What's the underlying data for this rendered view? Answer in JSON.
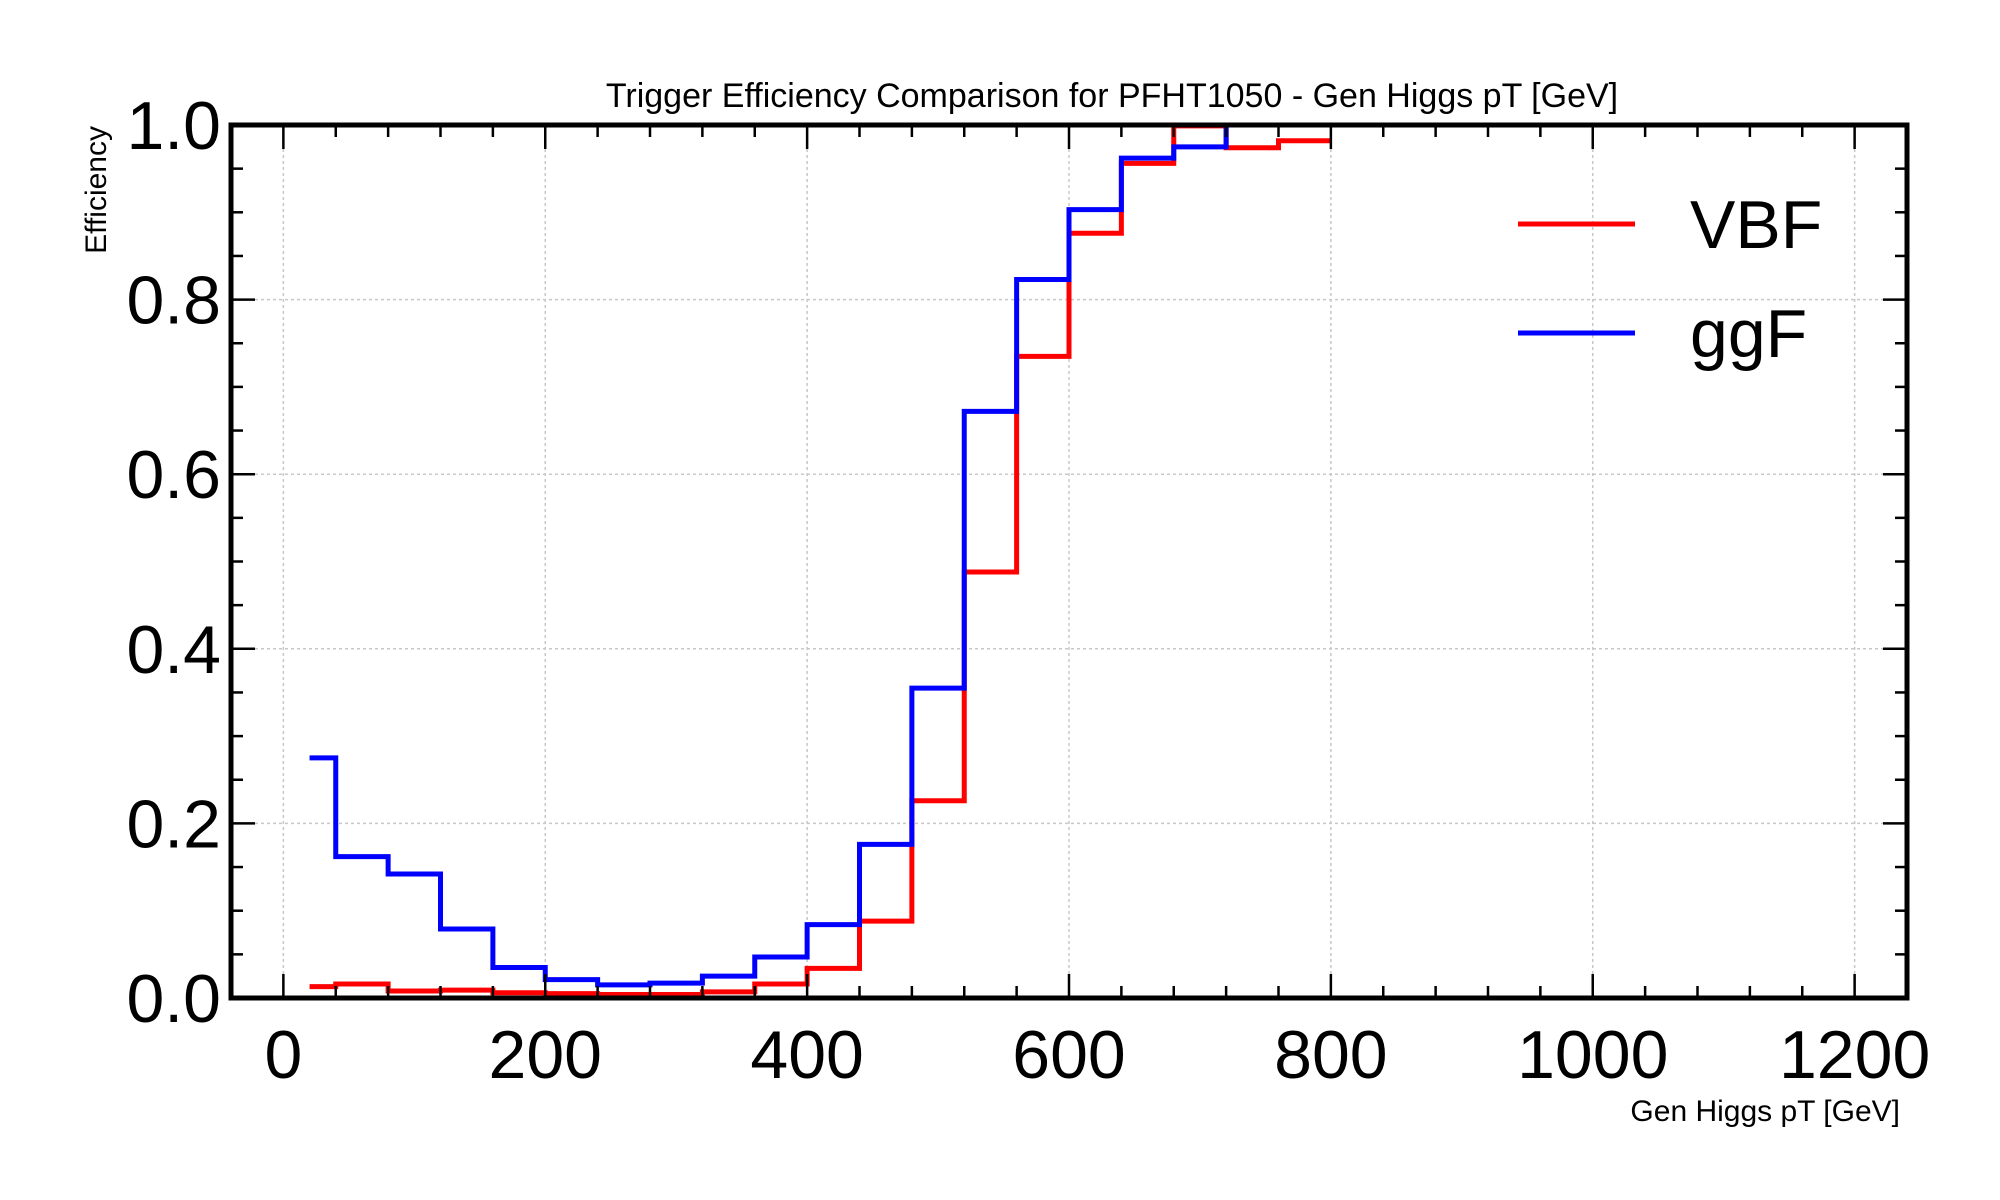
{
  "chart_data": {
    "type": "line",
    "drawstyle": "step",
    "title": "Trigger Efficiency Comparison for PFHT1050 - Gen Higgs pT [GeV]",
    "xlabel": "Gen Higgs pT [GeV]",
    "ylabel": "Efficiency",
    "xlim": [
      -40,
      1240
    ],
    "ylim": [
      0,
      1.0
    ],
    "xticks": [
      0,
      200,
      400,
      600,
      800,
      1000,
      1200
    ],
    "yticks": [
      0.0,
      0.2,
      0.4,
      0.6,
      0.8,
      1.0
    ],
    "xtick_labels": [
      "0",
      "200",
      "400",
      "600",
      "800",
      "1000",
      "1200"
    ],
    "ytick_labels": [
      "0.0",
      "0.2",
      "0.4",
      "0.6",
      "0.8",
      "1.0"
    ],
    "grid": true,
    "legend_position": "top-right",
    "bin_edges": [
      20,
      40,
      80,
      120,
      160,
      200,
      240,
      280,
      320,
      360,
      400,
      440,
      480,
      520,
      560,
      600,
      640,
      680,
      720,
      760,
      800
    ],
    "series": [
      {
        "name": "VBF",
        "color": "#ff0000",
        "values": [
          0.013,
          0.016,
          0.008,
          0.009,
          0.006,
          0.005,
          0.004,
          0.004,
          0.007,
          0.016,
          0.034,
          0.088,
          0.226,
          0.488,
          0.735,
          0.876,
          0.956,
          0.999,
          0.974,
          0.982
        ]
      },
      {
        "name": "ggF",
        "color": "#0000ff",
        "values": [
          0.275,
          0.162,
          0.142,
          0.079,
          0.035,
          0.021,
          0.015,
          0.017,
          0.025,
          0.047,
          0.084,
          0.176,
          0.355,
          0.672,
          0.823,
          0.903,
          0.962,
          0.975,
          1.0,
          null
        ]
      }
    ]
  }
}
